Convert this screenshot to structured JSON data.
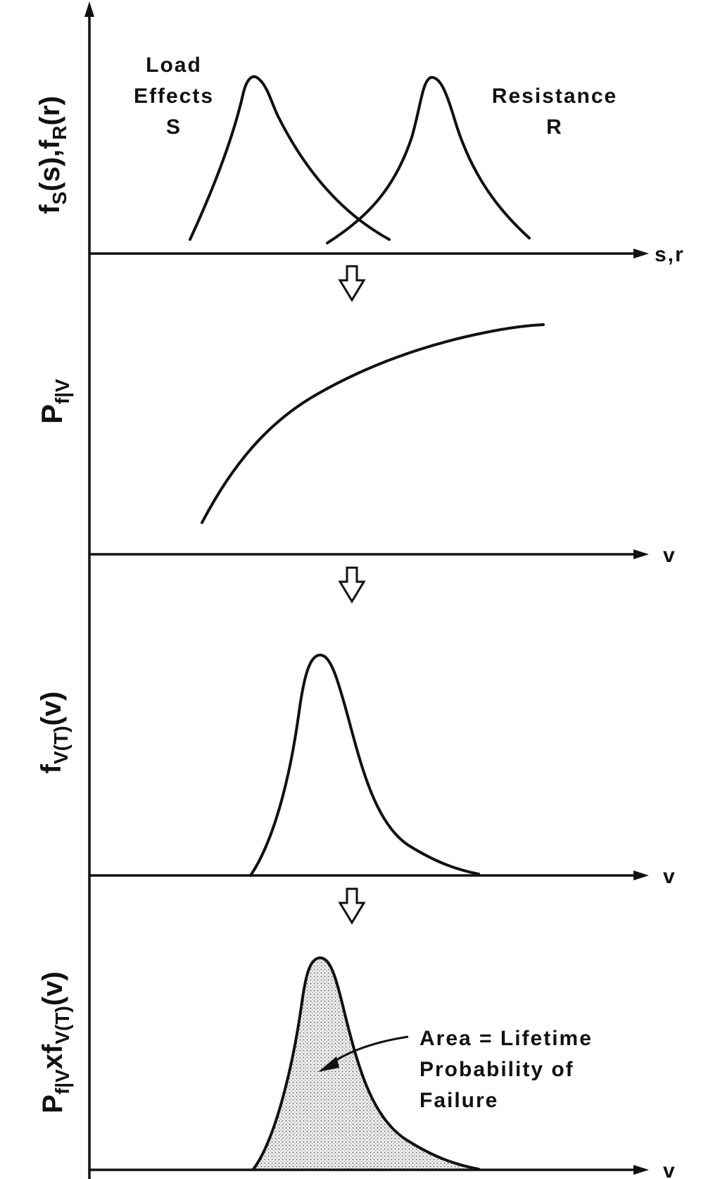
{
  "panels": [
    {
      "id": "load-resistance",
      "ylabel": {
        "main": "f",
        "sub1": "S",
        "mid": "(s),f",
        "sub2": "R",
        "tail": "(r)"
      },
      "xlabel": "s,r",
      "curve_labels": {
        "load": [
          "Load",
          "Effects",
          "S"
        ],
        "resistance": [
          "Resistance",
          "R"
        ]
      }
    },
    {
      "id": "conditional-failure-prob",
      "ylabel": {
        "main": "P",
        "sub1": "f|V"
      },
      "xlabel": "v"
    },
    {
      "id": "load-intensity-density",
      "ylabel": {
        "main": "f",
        "sub1": "V(T)",
        "tail": "(v)"
      },
      "xlabel": "v"
    },
    {
      "id": "product-density",
      "ylabel": {
        "main": "P",
        "sub1": "f|V",
        "mid": "xf",
        "sub2": "V(T)",
        "tail": "(v)"
      },
      "xlabel": "v",
      "annotation": [
        "Area = Lifetime",
        "Probability of",
        "Failure"
      ]
    }
  ],
  "colors": {
    "ink": "#111111",
    "shade": "#d9d9d9",
    "background": "#ffffff"
  }
}
